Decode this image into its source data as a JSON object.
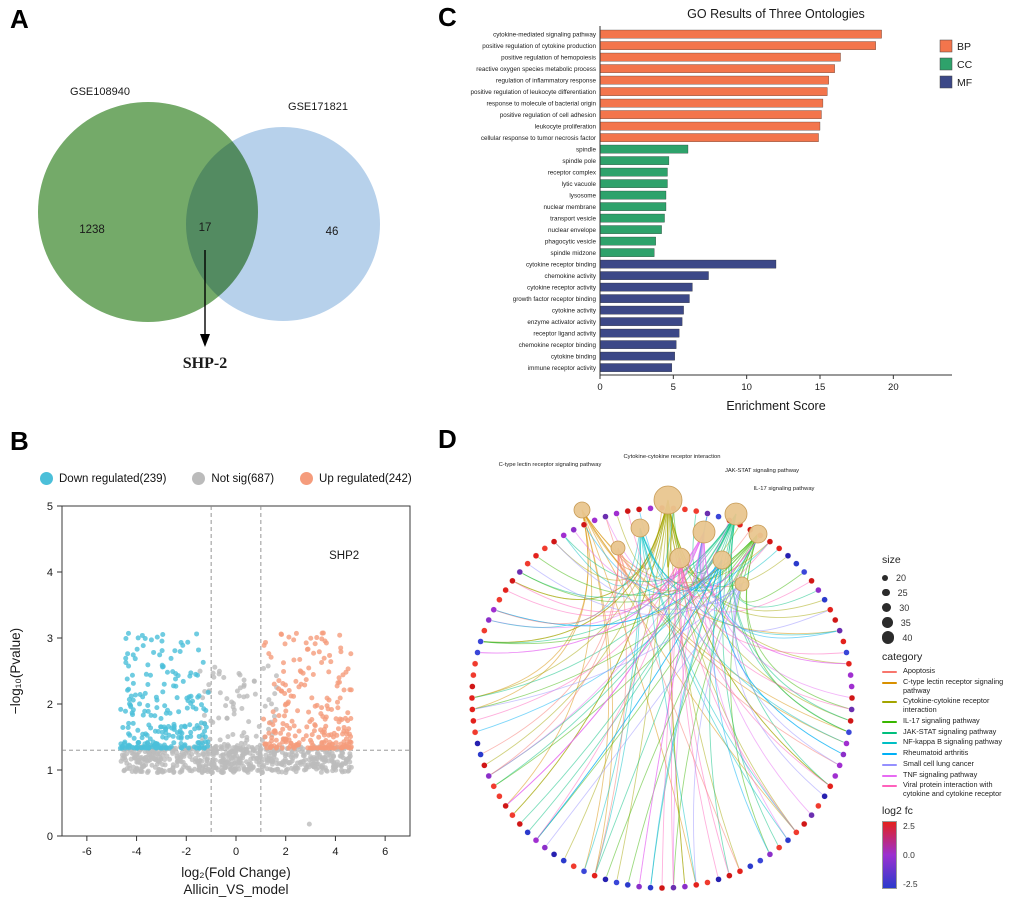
{
  "figure": {
    "panel_letters": [
      "A",
      "B",
      "C",
      "D"
    ]
  },
  "chart_data": [
    {
      "type": "venn",
      "panel": "A",
      "sets": [
        {
          "label": "GSE108940",
          "count": "1238",
          "color": "#68a35c",
          "label_color": "#6fa763"
        },
        {
          "label": "GSE171821",
          "count": "46",
          "color": "#aac9e8",
          "label_color": "#9fc0e2"
        }
      ],
      "overlap_count": "17",
      "callout": "SHP-2"
    },
    {
      "type": "scatter",
      "panel": "B",
      "xlabel": "log₂(Fold Change)",
      "xlabel_line2": "Allicin_VS_model",
      "ylabel": "−log₁₀(Pvalue)",
      "xlim": [
        -7,
        7
      ],
      "ylim": [
        0,
        5
      ],
      "xticks": [
        -6,
        -4,
        -2,
        0,
        2,
        4,
        6
      ],
      "yticks": [
        0,
        1,
        2,
        3,
        4,
        5
      ],
      "threshold_x": [
        -1,
        1
      ],
      "threshold_y": 1.3,
      "series": [
        {
          "name": "Down regulated(239)",
          "color": "#4BBFD9",
          "n": 239
        },
        {
          "name": "Not sig(687)",
          "color": "#BBBBBB",
          "n": 687
        },
        {
          "name": "Up regulated(242)",
          "color": "#F59C7C",
          "n": 242
        }
      ],
      "annotation": {
        "text": "SHP2",
        "x": 4.35,
        "y": 4.2,
        "color": "#FF1500"
      }
    },
    {
      "type": "bar",
      "panel": "C",
      "title": "GO Results of Three Ontologies",
      "xlabel": "Enrichment Score",
      "xticks": [
        0,
        5,
        10,
        15,
        20
      ],
      "xlim": [
        0,
        24
      ],
      "legend_position": "top-right",
      "groups": [
        {
          "name": "BP",
          "color": "#F3754C",
          "items": [
            {
              "label": "cytokine-mediated signaling pathway",
              "value": 19.2
            },
            {
              "label": "positive regulation of cytokine production",
              "value": 18.8
            },
            {
              "label": "positive regulation of hemopoiesis",
              "value": 16.4
            },
            {
              "label": "reactive oxygen species metabolic process",
              "value": 16.0
            },
            {
              "label": "regulation of inflammatory response",
              "value": 15.6
            },
            {
              "label": "positive regulation of leukocyte differentiation",
              "value": 15.5
            },
            {
              "label": "response to molecule of bacterial origin",
              "value": 15.2
            },
            {
              "label": "positive regulation of cell adhesion",
              "value": 15.1
            },
            {
              "label": "leukocyte proliferation",
              "value": 15.0
            },
            {
              "label": "cellular response to tumor necrosis factor",
              "value": 14.9
            }
          ]
        },
        {
          "name": "CC",
          "color": "#2EA26B",
          "items": [
            {
              "label": "spindle",
              "value": 6.0
            },
            {
              "label": "spindle pole",
              "value": 4.7
            },
            {
              "label": "receptor complex",
              "value": 4.6
            },
            {
              "label": "lytic vacuole",
              "value": 4.6
            },
            {
              "label": "lysosome",
              "value": 4.5
            },
            {
              "label": "nuclear membrane",
              "value": 4.5
            },
            {
              "label": "transport vesicle",
              "value": 4.4
            },
            {
              "label": "nuclear envelope",
              "value": 4.2
            },
            {
              "label": "phagocytic vesicle",
              "value": 3.8
            },
            {
              "label": "spindle midzone",
              "value": 3.7
            }
          ]
        },
        {
          "name": "MF",
          "color": "#3C4887",
          "items": [
            {
              "label": "cytokine receptor binding",
              "value": 12.0
            },
            {
              "label": "chemokine activity",
              "value": 7.4
            },
            {
              "label": "cytokine receptor activity",
              "value": 6.3
            },
            {
              "label": "growth factor receptor binding",
              "value": 6.1
            },
            {
              "label": "cytokine activity",
              "value": 5.7
            },
            {
              "label": "enzyme activator activity",
              "value": 5.6
            },
            {
              "label": "receptor ligand activity",
              "value": 5.4
            },
            {
              "label": "chemokine receptor binding",
              "value": 5.2
            },
            {
              "label": "cytokine binding",
              "value": 5.1
            },
            {
              "label": "immune receptor activity",
              "value": 4.9
            }
          ]
        }
      ]
    },
    {
      "type": "network",
      "panel": "D",
      "hub_color": "#E9C68F",
      "hub_labels": [
        "C-type lectin receptor signaling pathway",
        "Cytokine-cytokine receptor interaction",
        "JAK-STAT signaling pathway",
        "IL-17 signaling pathway"
      ],
      "size_legend": {
        "title": "size",
        "values": [
          20,
          25,
          30,
          35,
          40
        ]
      },
      "category_legend": {
        "title": "category",
        "items": [
          {
            "label": "Apoptosis",
            "color": "#F8766D"
          },
          {
            "label": "C-type lectin receptor signaling pathway",
            "color": "#D89000"
          },
          {
            "label": "Cytokine-cytokine receptor interaction",
            "color": "#A3A500"
          },
          {
            "label": "IL-17 signaling pathway",
            "color": "#39B600"
          },
          {
            "label": "JAK-STAT signaling pathway",
            "color": "#00BF7D"
          },
          {
            "label": "NF-kappa B signaling pathway",
            "color": "#00BFC4"
          },
          {
            "label": "Rheumatoid arthritis",
            "color": "#00B0F6"
          },
          {
            "label": "Small cell lung cancer",
            "color": "#9590FF"
          },
          {
            "label": "TNF signaling pathway",
            "color": "#E76BF3"
          },
          {
            "label": "Viral protein interaction with cytokine and cytokine receptor",
            "color": "#FF62BC"
          }
        ]
      },
      "log2fc_legend": {
        "title": "log2 fc",
        "ticks": [
          "2.5",
          "0.0",
          "-2.5"
        ],
        "colors": [
          "#E3211C",
          "#9B30D0",
          "#2B3ACC"
        ]
      }
    }
  ]
}
